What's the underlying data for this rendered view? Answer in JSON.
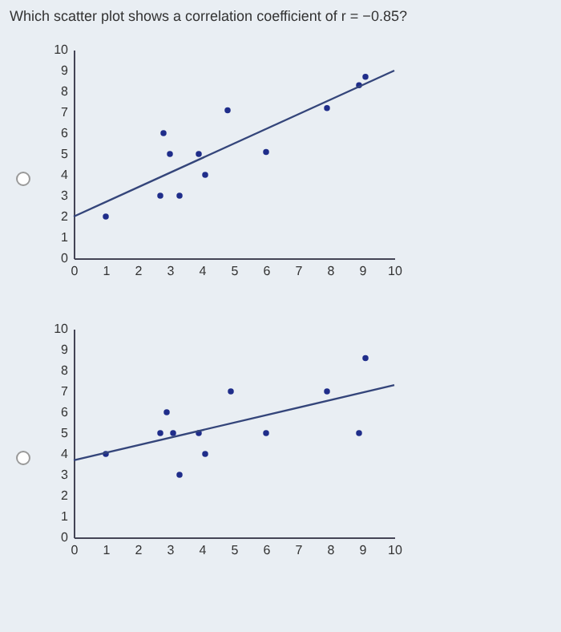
{
  "chart_data": [
    {
      "type": "scatter",
      "title": "Which scatter plot shows a correlation coefficient of r = −0.85?",
      "xlim": [
        0,
        10
      ],
      "ylim": [
        0,
        10
      ],
      "xticks": [
        0,
        1,
        2,
        3,
        4,
        5,
        6,
        7,
        8,
        9,
        10
      ],
      "yticks": [
        0,
        1,
        2,
        3,
        4,
        5,
        6,
        7,
        8,
        9,
        10
      ],
      "series": [
        {
          "type": "scatter",
          "marker": "circle",
          "color": "#1f2d8a",
          "x": [
            1,
            2.7,
            2.8,
            3,
            3.3,
            3.9,
            4.1,
            4.8,
            6,
            7.9,
            8.9,
            9.1
          ],
          "values": [
            2,
            3,
            6,
            5,
            3,
            5,
            4,
            7.1,
            5.1,
            7.2,
            8.3,
            8.7
          ]
        },
        {
          "type": "line",
          "color": "#34457a",
          "x": [
            0,
            10
          ],
          "values": [
            2,
            9
          ]
        }
      ]
    },
    {
      "type": "scatter",
      "xlim": [
        0,
        10
      ],
      "ylim": [
        0,
        10
      ],
      "xticks": [
        0,
        1,
        2,
        3,
        4,
        5,
        6,
        7,
        8,
        9,
        10
      ],
      "yticks": [
        0,
        1,
        2,
        3,
        4,
        5,
        6,
        7,
        8,
        9,
        10
      ],
      "series": [
        {
          "type": "scatter",
          "marker": "circle",
          "color": "#1f2d8a",
          "x": [
            1,
            2.7,
            2.9,
            3.1,
            3.3,
            3.9,
            4.1,
            4.9,
            6,
            7.9,
            8.9,
            9.1
          ],
          "values": [
            4,
            5,
            6,
            5,
            3,
            5,
            4,
            7,
            5,
            7,
            5,
            8.6
          ]
        },
        {
          "type": "line",
          "color": "#34457a",
          "x": [
            0,
            10
          ],
          "values": [
            3.7,
            7.3
          ]
        }
      ]
    }
  ]
}
